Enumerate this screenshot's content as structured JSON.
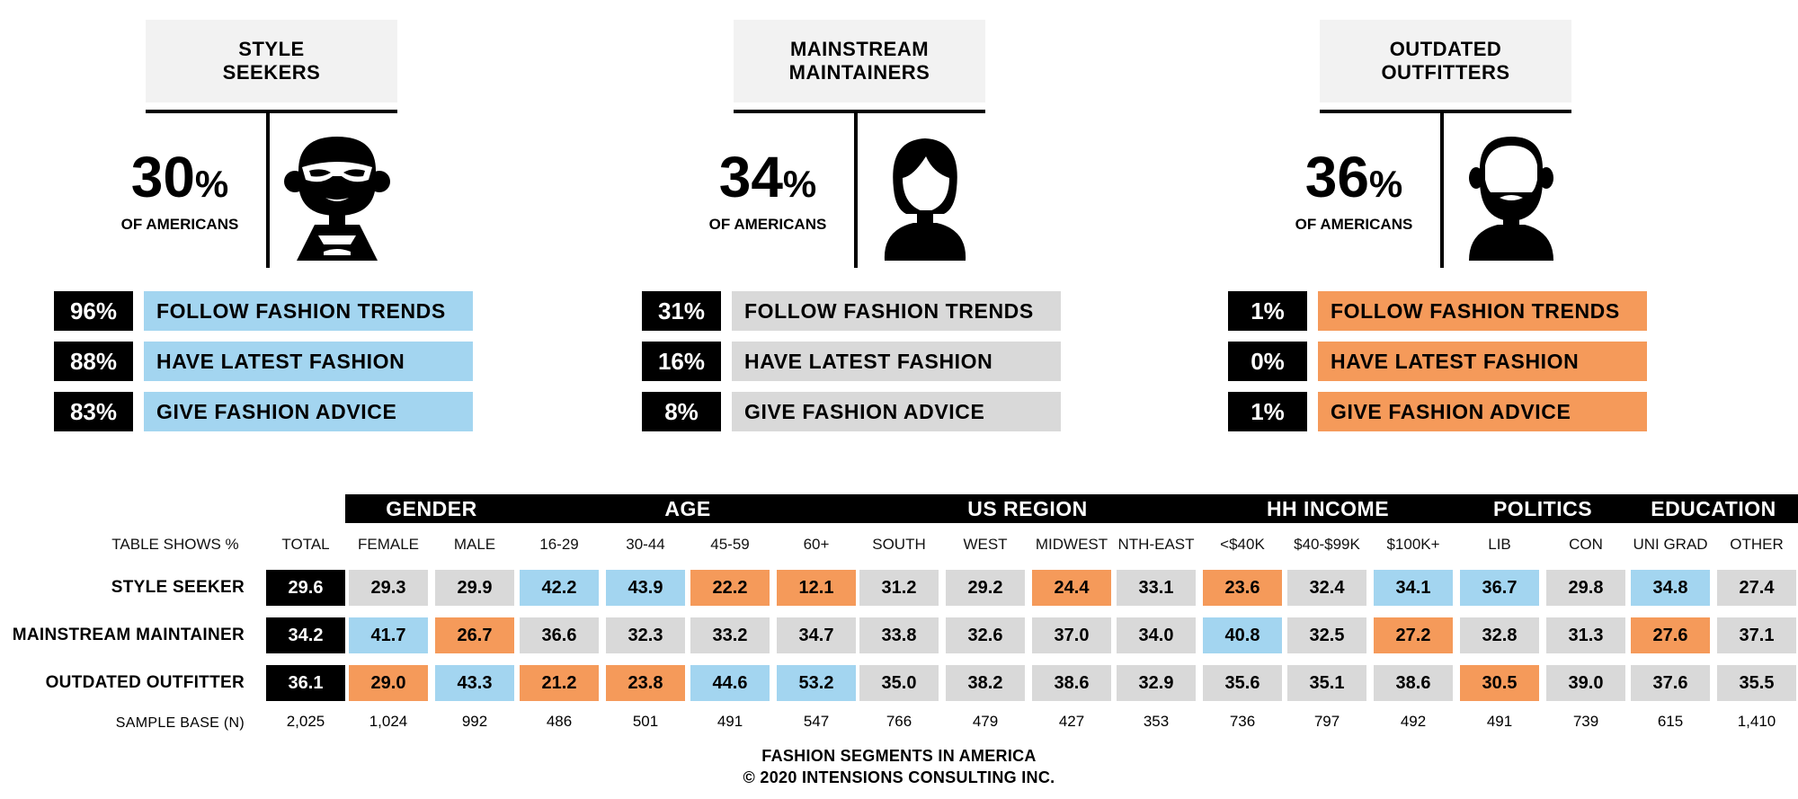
{
  "colors": {
    "blue": "#a3d5f0",
    "grey": "#d9d9d9",
    "orange": "#f59a5a",
    "black": "#000000",
    "header_bg": "#f2f2f2"
  },
  "segments": [
    {
      "title": "STYLE\nSEEKERS",
      "pct": "30",
      "pct_sign": "%",
      "sub": "OF AMERICANS",
      "icon": "style-seeker-avatar-icon",
      "label_color": "blue",
      "stats": [
        {
          "value": "96%",
          "label": "FOLLOW FASHION TRENDS"
        },
        {
          "value": "88%",
          "label": "HAVE LATEST FASHION"
        },
        {
          "value": "83%",
          "label": "GIVE FASHION ADVICE"
        }
      ]
    },
    {
      "title": "MAINSTREAM\nMAINTAINERS",
      "pct": "34",
      "pct_sign": "%",
      "sub": "OF AMERICANS",
      "icon": "woman-avatar-icon",
      "label_color": "grey",
      "stats": [
        {
          "value": "31%",
          "label": "FOLLOW FASHION TRENDS"
        },
        {
          "value": "16%",
          "label": "HAVE LATEST FASHION"
        },
        {
          "value": "8%",
          "label": "GIVE FASHION ADVICE"
        }
      ]
    },
    {
      "title": "OUTDATED\nOUTFITTERS",
      "pct": "36",
      "pct_sign": "%",
      "sub": "OF AMERICANS",
      "icon": "bald-bearded-man-avatar-icon",
      "label_color": "orange",
      "stats": [
        {
          "value": "1%",
          "label": "FOLLOW FASHION TRENDS"
        },
        {
          "value": "0%",
          "label": "HAVE LATEST FASHION"
        },
        {
          "value": "1%",
          "label": "GIVE FASHION ADVICE"
        }
      ]
    }
  ],
  "chart_data": {
    "type": "table",
    "table_label": "TABLE SHOWS %",
    "groups": [
      {
        "name": "GENDER",
        "columns": [
          "FEMALE",
          "MALE"
        ]
      },
      {
        "name": "AGE",
        "columns": [
          "16-29",
          "30-44",
          "45-59",
          "60+"
        ]
      },
      {
        "name": "US REGION",
        "columns": [
          "SOUTH",
          "WEST",
          "MIDWEST",
          "NTH-EAST"
        ]
      },
      {
        "name": "HH INCOME",
        "columns": [
          "<$40K",
          "$40-$99K",
          "$100K+"
        ]
      },
      {
        "name": "POLITICS",
        "columns": [
          "LIB",
          "CON"
        ]
      },
      {
        "name": "EDUCATION",
        "columns": [
          "UNI GRAD",
          "OTHER"
        ]
      }
    ],
    "columns": [
      "TOTAL",
      "FEMALE",
      "MALE",
      "16-29",
      "30-44",
      "45-59",
      "60+",
      "SOUTH",
      "WEST",
      "MIDWEST",
      "NTH-EAST",
      "<$40K",
      "$40-$99K",
      "$100K+",
      "LIB",
      "CON",
      "UNI GRAD",
      "OTHER"
    ],
    "rows": [
      {
        "label": "STYLE SEEKER",
        "values": [
          "29.6",
          "29.3",
          "29.9",
          "42.2",
          "43.9",
          "22.2",
          "12.1",
          "31.2",
          "29.2",
          "24.4",
          "33.1",
          "23.6",
          "32.4",
          "34.1",
          "36.7",
          "29.8",
          "34.8",
          "27.4"
        ],
        "colors": [
          "black",
          "grey",
          "grey",
          "blue",
          "blue",
          "orange",
          "orange",
          "grey",
          "grey",
          "orange",
          "grey",
          "orange",
          "grey",
          "blue",
          "blue",
          "grey",
          "blue",
          "grey"
        ]
      },
      {
        "label": "MAINSTREAM MAINTAINER",
        "values": [
          "34.2",
          "41.7",
          "26.7",
          "36.6",
          "32.3",
          "33.2",
          "34.7",
          "33.8",
          "32.6",
          "37.0",
          "34.0",
          "40.8",
          "32.5",
          "27.2",
          "32.8",
          "31.3",
          "27.6",
          "37.1"
        ],
        "colors": [
          "black",
          "blue",
          "orange",
          "grey",
          "grey",
          "grey",
          "grey",
          "grey",
          "grey",
          "grey",
          "grey",
          "blue",
          "grey",
          "orange",
          "grey",
          "grey",
          "orange",
          "grey"
        ]
      },
      {
        "label": "OUTDATED OUTFITTER",
        "values": [
          "36.1",
          "29.0",
          "43.3",
          "21.2",
          "23.8",
          "44.6",
          "53.2",
          "35.0",
          "38.2",
          "38.6",
          "32.9",
          "35.6",
          "35.1",
          "38.6",
          "30.5",
          "39.0",
          "37.6",
          "35.5"
        ],
        "colors": [
          "black",
          "orange",
          "blue",
          "orange",
          "orange",
          "blue",
          "blue",
          "grey",
          "grey",
          "grey",
          "grey",
          "grey",
          "grey",
          "grey",
          "orange",
          "grey",
          "grey",
          "grey"
        ]
      }
    ],
    "sample_label": "SAMPLE BASE (N)",
    "sample_base": [
      "2,025",
      "1,024",
      "992",
      "486",
      "501",
      "491",
      "547",
      "766",
      "479",
      "427",
      "353",
      "736",
      "797",
      "492",
      "491",
      "739",
      "615",
      "1,410"
    ]
  },
  "footer": {
    "line1": "FASHION SEGMENTS IN AMERICA",
    "line2": "© 2020 INTENSIONS CONSULTING INC."
  }
}
